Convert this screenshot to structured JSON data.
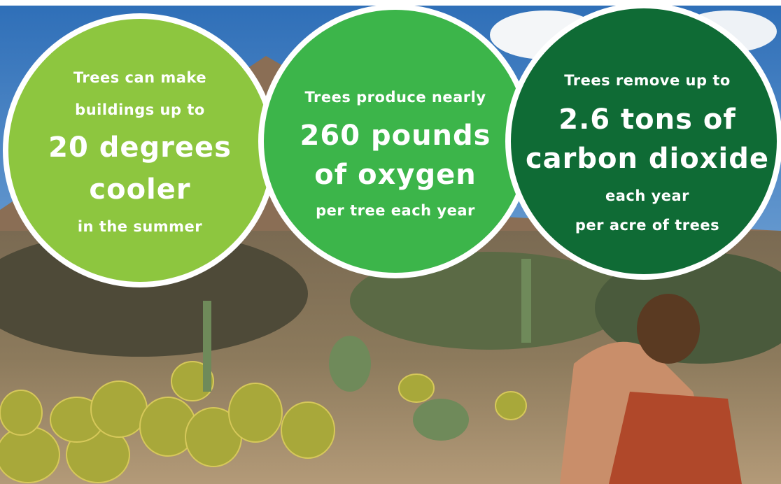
{
  "circles": [
    {
      "lines": [
        "Trees can make",
        "buildings up to",
        "20 degrees",
        "cooler",
        "in the summer"
      ]
    },
    {
      "lines": [
        "Trees produce nearly",
        "260 pounds",
        "of oxygen",
        "per tree each year"
      ]
    },
    {
      "lines": [
        "Trees remove up to",
        "2.6 tons of",
        "carbon dioxide",
        "each year",
        "per acre of trees"
      ]
    }
  ]
}
